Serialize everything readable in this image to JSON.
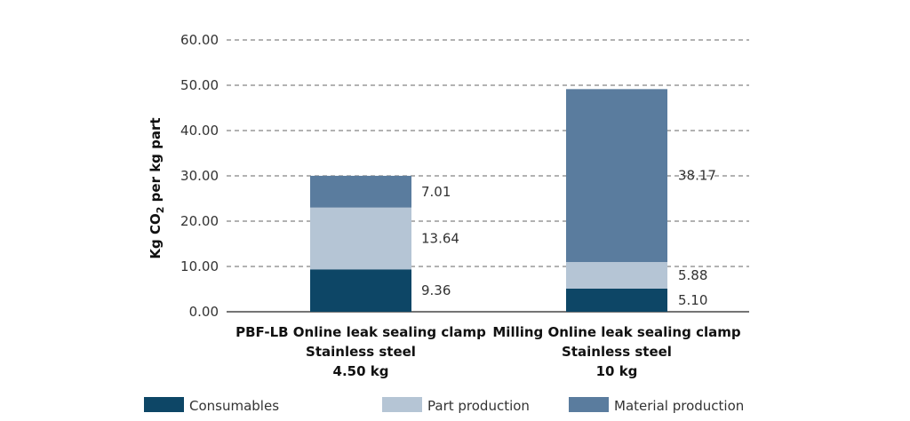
{
  "chart_data": {
    "type": "bar",
    "stacked": true,
    "title": "",
    "ylabel_parts": {
      "main": "Kg CO",
      "sub": "2",
      "rest": " per kg part"
    },
    "ylim": [
      0,
      60
    ],
    "yticks": [
      0,
      10,
      20,
      30,
      40,
      50,
      60
    ],
    "ytick_labels": [
      "0.00",
      "10.00",
      "20.00",
      "30.00",
      "40.00",
      "50.00",
      "60.00"
    ],
    "grid": "dashed-horizontal",
    "categories": [
      [
        "PBF-LB Online leak sealing clamp",
        "Stainless steel",
        "4.50 kg"
      ],
      [
        "Milling Online leak sealing clamp",
        "Stainless steel",
        "10 kg"
      ]
    ],
    "series": [
      {
        "name": "Consumables",
        "color": "#0d4666",
        "values": [
          9.36,
          5.1
        ],
        "labels": [
          "9.36",
          "5.10"
        ]
      },
      {
        "name": "Part production",
        "color": "#b5c5d5",
        "values": [
          13.64,
          5.88
        ],
        "labels": [
          "13.64",
          "5.88"
        ]
      },
      {
        "name": "Material production",
        "color": "#5a7c9e",
        "values": [
          7.01,
          38.17
        ],
        "labels": [
          "7.01",
          "38.17"
        ]
      }
    ],
    "legend_position": "bottom"
  }
}
